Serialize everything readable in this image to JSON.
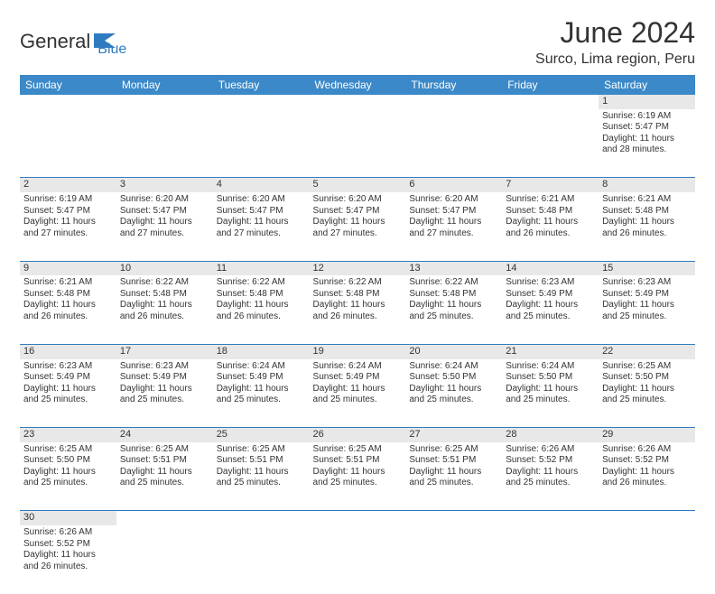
{
  "logo": {
    "text1": "General",
    "text2": "Blue",
    "shape_color": "#2f7bbf"
  },
  "title": "June 2024",
  "location": "Surco, Lima region, Peru",
  "header_bg": "#3b89c8",
  "daynum_bg": "#e8e8e8",
  "border_color": "#2f7bbf",
  "day_headers": [
    "Sunday",
    "Monday",
    "Tuesday",
    "Wednesday",
    "Thursday",
    "Friday",
    "Saturday"
  ],
  "weeks": [
    [
      null,
      null,
      null,
      null,
      null,
      null,
      {
        "n": "1",
        "sr": "Sunrise: 6:19 AM",
        "ss": "Sunset: 5:47 PM",
        "dl": "Daylight: 11 hours and 28 minutes."
      }
    ],
    [
      {
        "n": "2",
        "sr": "Sunrise: 6:19 AM",
        "ss": "Sunset: 5:47 PM",
        "dl": "Daylight: 11 hours and 27 minutes."
      },
      {
        "n": "3",
        "sr": "Sunrise: 6:20 AM",
        "ss": "Sunset: 5:47 PM",
        "dl": "Daylight: 11 hours and 27 minutes."
      },
      {
        "n": "4",
        "sr": "Sunrise: 6:20 AM",
        "ss": "Sunset: 5:47 PM",
        "dl": "Daylight: 11 hours and 27 minutes."
      },
      {
        "n": "5",
        "sr": "Sunrise: 6:20 AM",
        "ss": "Sunset: 5:47 PM",
        "dl": "Daylight: 11 hours and 27 minutes."
      },
      {
        "n": "6",
        "sr": "Sunrise: 6:20 AM",
        "ss": "Sunset: 5:47 PM",
        "dl": "Daylight: 11 hours and 27 minutes."
      },
      {
        "n": "7",
        "sr": "Sunrise: 6:21 AM",
        "ss": "Sunset: 5:48 PM",
        "dl": "Daylight: 11 hours and 26 minutes."
      },
      {
        "n": "8",
        "sr": "Sunrise: 6:21 AM",
        "ss": "Sunset: 5:48 PM",
        "dl": "Daylight: 11 hours and 26 minutes."
      }
    ],
    [
      {
        "n": "9",
        "sr": "Sunrise: 6:21 AM",
        "ss": "Sunset: 5:48 PM",
        "dl": "Daylight: 11 hours and 26 minutes."
      },
      {
        "n": "10",
        "sr": "Sunrise: 6:22 AM",
        "ss": "Sunset: 5:48 PM",
        "dl": "Daylight: 11 hours and 26 minutes."
      },
      {
        "n": "11",
        "sr": "Sunrise: 6:22 AM",
        "ss": "Sunset: 5:48 PM",
        "dl": "Daylight: 11 hours and 26 minutes."
      },
      {
        "n": "12",
        "sr": "Sunrise: 6:22 AM",
        "ss": "Sunset: 5:48 PM",
        "dl": "Daylight: 11 hours and 26 minutes."
      },
      {
        "n": "13",
        "sr": "Sunrise: 6:22 AM",
        "ss": "Sunset: 5:48 PM",
        "dl": "Daylight: 11 hours and 25 minutes."
      },
      {
        "n": "14",
        "sr": "Sunrise: 6:23 AM",
        "ss": "Sunset: 5:49 PM",
        "dl": "Daylight: 11 hours and 25 minutes."
      },
      {
        "n": "15",
        "sr": "Sunrise: 6:23 AM",
        "ss": "Sunset: 5:49 PM",
        "dl": "Daylight: 11 hours and 25 minutes."
      }
    ],
    [
      {
        "n": "16",
        "sr": "Sunrise: 6:23 AM",
        "ss": "Sunset: 5:49 PM",
        "dl": "Daylight: 11 hours and 25 minutes."
      },
      {
        "n": "17",
        "sr": "Sunrise: 6:23 AM",
        "ss": "Sunset: 5:49 PM",
        "dl": "Daylight: 11 hours and 25 minutes."
      },
      {
        "n": "18",
        "sr": "Sunrise: 6:24 AM",
        "ss": "Sunset: 5:49 PM",
        "dl": "Daylight: 11 hours and 25 minutes."
      },
      {
        "n": "19",
        "sr": "Sunrise: 6:24 AM",
        "ss": "Sunset: 5:49 PM",
        "dl": "Daylight: 11 hours and 25 minutes."
      },
      {
        "n": "20",
        "sr": "Sunrise: 6:24 AM",
        "ss": "Sunset: 5:50 PM",
        "dl": "Daylight: 11 hours and 25 minutes."
      },
      {
        "n": "21",
        "sr": "Sunrise: 6:24 AM",
        "ss": "Sunset: 5:50 PM",
        "dl": "Daylight: 11 hours and 25 minutes."
      },
      {
        "n": "22",
        "sr": "Sunrise: 6:25 AM",
        "ss": "Sunset: 5:50 PM",
        "dl": "Daylight: 11 hours and 25 minutes."
      }
    ],
    [
      {
        "n": "23",
        "sr": "Sunrise: 6:25 AM",
        "ss": "Sunset: 5:50 PM",
        "dl": "Daylight: 11 hours and 25 minutes."
      },
      {
        "n": "24",
        "sr": "Sunrise: 6:25 AM",
        "ss": "Sunset: 5:51 PM",
        "dl": "Daylight: 11 hours and 25 minutes."
      },
      {
        "n": "25",
        "sr": "Sunrise: 6:25 AM",
        "ss": "Sunset: 5:51 PM",
        "dl": "Daylight: 11 hours and 25 minutes."
      },
      {
        "n": "26",
        "sr": "Sunrise: 6:25 AM",
        "ss": "Sunset: 5:51 PM",
        "dl": "Daylight: 11 hours and 25 minutes."
      },
      {
        "n": "27",
        "sr": "Sunrise: 6:25 AM",
        "ss": "Sunset: 5:51 PM",
        "dl": "Daylight: 11 hours and 25 minutes."
      },
      {
        "n": "28",
        "sr": "Sunrise: 6:26 AM",
        "ss": "Sunset: 5:52 PM",
        "dl": "Daylight: 11 hours and 25 minutes."
      },
      {
        "n": "29",
        "sr": "Sunrise: 6:26 AM",
        "ss": "Sunset: 5:52 PM",
        "dl": "Daylight: 11 hours and 26 minutes."
      }
    ],
    [
      {
        "n": "30",
        "sr": "Sunrise: 6:26 AM",
        "ss": "Sunset: 5:52 PM",
        "dl": "Daylight: 11 hours and 26 minutes."
      },
      null,
      null,
      null,
      null,
      null,
      null
    ]
  ]
}
